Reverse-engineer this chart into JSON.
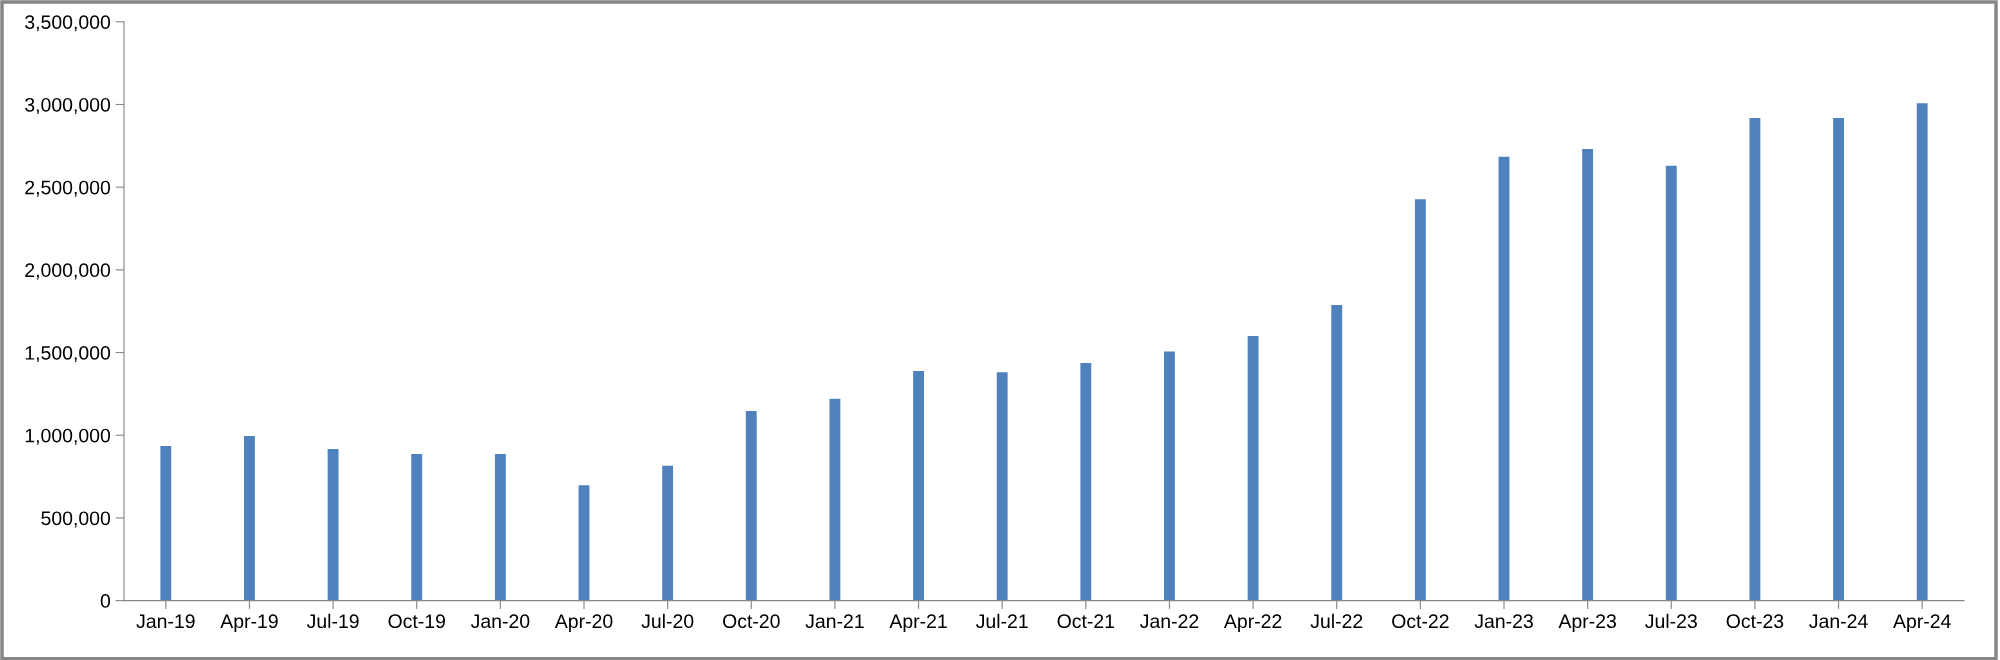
{
  "chart_data": {
    "type": "bar",
    "categories": [
      "Jan-19",
      "Apr-19",
      "Jul-19",
      "Oct-19",
      "Jan-20",
      "Apr-20",
      "Jul-20",
      "Oct-20",
      "Jan-21",
      "Apr-21",
      "Jul-21",
      "Oct-21",
      "Jan-22",
      "Apr-22",
      "Jul-22",
      "Oct-22",
      "Jan-23",
      "Apr-23",
      "Jul-23",
      "Oct-23",
      "Jan-24",
      "Apr-24"
    ],
    "values": [
      935000,
      995000,
      917000,
      886000,
      886000,
      698000,
      815000,
      1147000,
      1221000,
      1389000,
      1381000,
      1436000,
      1506000,
      1600000,
      1787000,
      2427000,
      2684000,
      2731000,
      2630000,
      2918000,
      2918000,
      3008000
    ],
    "color": "#4f81bd",
    "ylim": [
      0,
      3500000
    ],
    "yticks": [
      0,
      {
        "value": 500000,
        "label": "500,000"
      },
      {
        "value": 1000000,
        "label": "1,000,000"
      },
      {
        "value": 1500000,
        "label": "1,500,000"
      },
      {
        "value": 2000000,
        "label": "2,000,000"
      },
      {
        "value": 2500000,
        "label": "2,500,000"
      },
      {
        "value": 3000000,
        "label": "3,000,000"
      },
      {
        "value": 3500000,
        "label": "3,500,000"
      }
    ],
    "grid": false,
    "legend": false
  }
}
